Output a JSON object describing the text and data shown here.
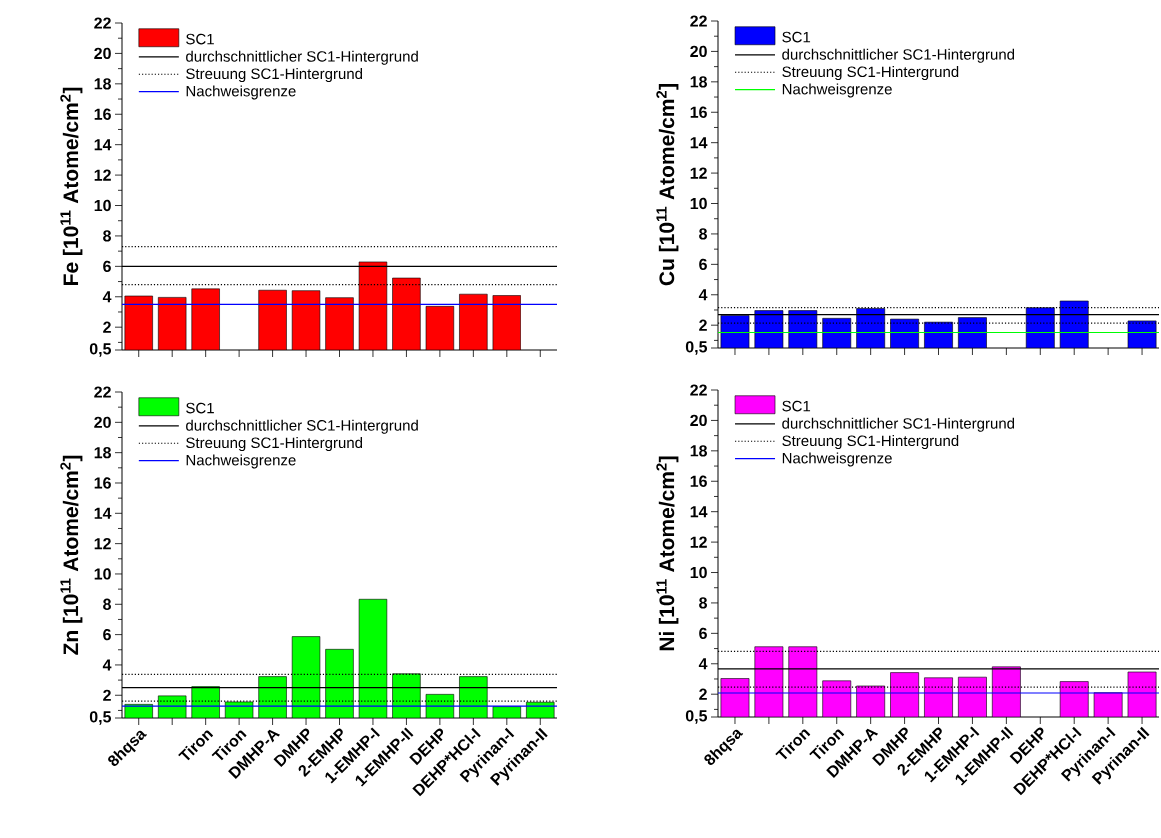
{
  "chart_data": [
    {
      "type": "bar",
      "ylabel": "Fe  [10$^{11}$ Atome/cm$^{2}$]",
      "legend": "top left",
      "categories": [
        null,
        null,
        null,
        null,
        null,
        null,
        null,
        null,
        null,
        null,
        null,
        null,
        null
      ],
      "series": [
        {
          "name": "SC1",
          "color": "#ff0000",
          "values": [
            4.05,
            3.96,
            4.52,
            null,
            4.43,
            4.4,
            3.94,
            6.29,
            5.23,
            3.37,
            4.17,
            4.08,
            null
          ]
        }
      ],
      "ylim": [
        0.5,
        22
      ],
      "yticks": [
        {
          "value": 0.5,
          "label": "0,5"
        },
        {
          "value": 1,
          "label": null
        },
        2,
        {
          "value": 3,
          "label": null
        },
        4,
        {
          "value": 5,
          "label": null
        },
        6,
        {
          "value": 7,
          "label": null
        },
        8,
        {
          "value": 9,
          "label": null
        },
        10,
        {
          "value": 11,
          "label": null
        },
        12,
        {
          "value": 13,
          "label": null
        },
        14,
        {
          "value": 15,
          "label": null
        },
        16,
        {
          "value": 17,
          "label": null
        },
        18,
        {
          "value": 19,
          "label": null
        },
        20,
        {
          "value": 21,
          "label": null
        },
        22
      ],
      "ref_lines": [
        {
          "axis": "y",
          "value": 6.0,
          "label": "durchschnittlicher SC1-Hintergrund",
          "color": "#000000",
          "line_style": "solid"
        },
        {
          "axis": "y",
          "value": 7.3,
          "label": "Streuung SC1-Hintergrund",
          "color": "#000000",
          "line_style": "dotted"
        },
        {
          "axis": "y",
          "value": 4.8,
          "color": "#000000",
          "line_style": "dotted"
        },
        {
          "axis": "y",
          "value": 3.5,
          "label": "Nachweisgrenze",
          "color": "#0000ff",
          "line_style": "solid"
        }
      ]
    },
    {
      "type": "bar",
      "ylabel": "Cu  [10$^{11}$ Atome/cm$^{2}$]",
      "legend": "top left",
      "categories": [
        null,
        null,
        null,
        null,
        null,
        null,
        null,
        null,
        null,
        null,
        null,
        null,
        null
      ],
      "series": [
        {
          "name": "SC1",
          "color": "#0000ff",
          "values": [
            2.64,
            2.96,
            2.96,
            2.45,
            3.1,
            2.4,
            2.2,
            2.5,
            null,
            3.15,
            3.59,
            null,
            2.28
          ]
        }
      ],
      "ylim": [
        0.5,
        22
      ],
      "yticks": [
        {
          "value": 0.5,
          "label": "0,5"
        },
        {
          "value": 1,
          "label": null
        },
        2,
        {
          "value": 3,
          "label": null
        },
        4,
        {
          "value": 5,
          "label": null
        },
        6,
        {
          "value": 7,
          "label": null
        },
        8,
        {
          "value": 9,
          "label": null
        },
        10,
        {
          "value": 11,
          "label": null
        },
        12,
        {
          "value": 13,
          "label": null
        },
        14,
        {
          "value": 15,
          "label": null
        },
        16,
        {
          "value": 17,
          "label": null
        },
        18,
        {
          "value": 19,
          "label": null
        },
        20,
        {
          "value": 21,
          "label": null
        },
        22
      ],
      "ref_lines": [
        {
          "axis": "y",
          "value": 2.69,
          "label": "durchschnittlicher SC1-Hintergrund",
          "color": "#000000",
          "line_style": "solid"
        },
        {
          "axis": "y",
          "value": 3.15,
          "label": "Streuung SC1-Hintergrund",
          "color": "#000000",
          "line_style": "dotted"
        },
        {
          "axis": "y",
          "value": 2.13,
          "color": "#000000",
          "line_style": "dotted"
        },
        {
          "axis": "y",
          "value": 1.52,
          "label": "Nachweisgrenze",
          "color": "#00ff00",
          "line_style": "solid"
        }
      ]
    },
    {
      "type": "bar",
      "ylabel": "Zn  [10$^{11}$ Atome/cm$^{2}$]",
      "legend": "top left",
      "categories": [
        "8hqsa",
        null,
        "Tiron",
        "Tiron",
        "DMHP-A",
        "DMHP",
        "2-EMHP",
        "1-EMHP-I",
        "1-EMHP-II",
        "DEHP",
        "DEHP*HCl-I",
        "Pyrinan-I",
        "Pyrinan-II"
      ],
      "series": [
        {
          "name": "SC1",
          "color": "#00ff00",
          "values": [
            1.4,
            1.96,
            2.57,
            1.56,
            3.23,
            5.87,
            5.03,
            8.33,
            3.42,
            2.06,
            3.23,
            1.25,
            1.54
          ]
        }
      ],
      "ylim": [
        0.5,
        22
      ],
      "yticks": [
        {
          "value": 0.5,
          "label": "0,5"
        },
        {
          "value": 1,
          "label": null
        },
        2,
        {
          "value": 3,
          "label": null
        },
        4,
        {
          "value": 5,
          "label": null
        },
        6,
        {
          "value": 7,
          "label": null
        },
        8,
        {
          "value": 9,
          "label": null
        },
        10,
        {
          "value": 11,
          "label": null
        },
        12,
        {
          "value": 13,
          "label": null
        },
        14,
        {
          "value": 15,
          "label": null
        },
        16,
        {
          "value": 17,
          "label": null
        },
        18,
        {
          "value": 19,
          "label": null
        },
        20,
        {
          "value": 21,
          "label": null
        },
        22
      ],
      "ref_lines": [
        {
          "axis": "y",
          "value": 2.5,
          "label": "durchschnittlicher SC1-Hintergrund",
          "color": "#000000",
          "line_style": "solid"
        },
        {
          "axis": "y",
          "value": 3.38,
          "label": "Streuung SC1-Hintergrund",
          "color": "#000000",
          "line_style": "dotted"
        },
        {
          "axis": "y",
          "value": 1.61,
          "color": "#000000",
          "line_style": "dotted"
        },
        {
          "axis": "y",
          "value": 1.28,
          "label": "Nachweisgrenze",
          "color": "#0000ff",
          "line_style": "solid"
        }
      ]
    },
    {
      "type": "bar",
      "ylabel": "Ni  [10$^{11}$ Atome/cm$^{2}$]",
      "legend": "top left",
      "categories": [
        "8hqsa",
        null,
        "Tiron",
        "Tiron",
        "DMHP-A",
        "DMHP",
        "2-EMHP",
        "1-EMHP-I",
        "1-EMHP-II",
        "DEHP",
        "DEHP*HCl-I",
        "Pyrinan-I",
        "Pyrinan-II"
      ],
      "series": [
        {
          "name": "SC1",
          "color": "#ff00ff",
          "values": [
            3.03,
            5.12,
            5.12,
            2.88,
            2.54,
            3.42,
            3.08,
            3.12,
            3.8,
            null,
            2.83,
            2.1,
            3.46
          ]
        }
      ],
      "ylim": [
        0.5,
        22
      ],
      "yticks": [
        {
          "value": 0.5,
          "label": "0,5"
        },
        {
          "value": 1,
          "label": null
        },
        2,
        {
          "value": 3,
          "label": null
        },
        4,
        {
          "value": 5,
          "label": null
        },
        6,
        {
          "value": 7,
          "label": null
        },
        8,
        {
          "value": 9,
          "label": null
        },
        10,
        {
          "value": 11,
          "label": null
        },
        12,
        {
          "value": 13,
          "label": null
        },
        14,
        {
          "value": 15,
          "label": null
        },
        16,
        {
          "value": 17,
          "label": null
        },
        18,
        {
          "value": 19,
          "label": null
        },
        20,
        {
          "value": 21,
          "label": null
        },
        22
      ],
      "ref_lines": [
        {
          "axis": "y",
          "value": 3.66,
          "label": "durchschnittlicher SC1-Hintergrund",
          "color": "#000000",
          "line_style": "solid"
        },
        {
          "axis": "y",
          "value": 4.82,
          "label": "Streuung SC1-Hintergrund",
          "color": "#000000",
          "line_style": "dotted"
        },
        {
          "axis": "y",
          "value": 2.47,
          "color": "#000000",
          "line_style": "dotted"
        },
        {
          "axis": "y",
          "value": 2.08,
          "label": "Nachweisgrenze",
          "color": "#0000ff",
          "line_style": "solid"
        }
      ]
    }
  ]
}
